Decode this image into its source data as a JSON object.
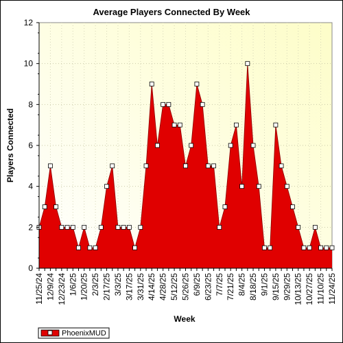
{
  "chart_data": {
    "type": "area",
    "title": "Average Players Connected By Week",
    "xlabel": "Week",
    "ylabel": "Players Connected",
    "ylim": [
      0,
      12
    ],
    "yticks": [
      0,
      2,
      4,
      6,
      8,
      10,
      12
    ],
    "grid": true,
    "legend_position": "bottom-left",
    "x": [
      "11/25/24",
      "12/2/24",
      "12/9/24",
      "12/16/24",
      "12/23/24",
      "12/30/24",
      "1/6/25",
      "1/13/25",
      "1/20/25",
      "1/27/25",
      "2/3/25",
      "2/10/25",
      "2/17/25",
      "2/24/25",
      "3/3/25",
      "3/10/25",
      "3/17/25",
      "3/24/25",
      "3/31/25",
      "4/7/25",
      "4/14/25",
      "4/21/25",
      "4/28/25",
      "5/5/25",
      "5/12/25",
      "5/19/25",
      "5/26/25",
      "6/2/25",
      "6/9/25",
      "6/16/25",
      "6/23/25",
      "6/30/25",
      "7/7/25",
      "7/14/25",
      "7/21/25",
      "7/28/25",
      "8/4/25",
      "8/11/25",
      "8/18/25",
      "8/25/25",
      "9/1/25",
      "9/8/25",
      "9/15/25",
      "9/22/25",
      "9/29/25",
      "10/6/25",
      "10/13/25",
      "10/20/25",
      "10/27/25",
      "11/3/25",
      "11/10/25",
      "11/17/25",
      "11/24/25"
    ],
    "xtick_labels": [
      "11/25/24",
      "12/9/24",
      "12/23/24",
      "1/6/25",
      "1/20/25",
      "2/3/25",
      "2/17/25",
      "3/3/25",
      "3/17/25",
      "3/31/25",
      "4/14/25",
      "4/28/25",
      "5/12/25",
      "5/26/25",
      "6/9/25",
      "6/23/25",
      "7/7/25",
      "7/21/25",
      "8/4/25",
      "8/18/25",
      "9/1/25",
      "9/15/25",
      "9/29/25",
      "10/13/25",
      "10/27/25",
      "11/10/25",
      "11/24/25"
    ],
    "series": [
      {
        "name": "PhoenixMUD",
        "color": "#e00000",
        "values": [
          2,
          3,
          5,
          3,
          2,
          2,
          2,
          1,
          2,
          1,
          1,
          2,
          4,
          5,
          2,
          2,
          2,
          1,
          2,
          5,
          9,
          6,
          8,
          8,
          7,
          7,
          5,
          6,
          9,
          8,
          5,
          5,
          2,
          3,
          6,
          7,
          4,
          10,
          6,
          4,
          1,
          1,
          7,
          5,
          4,
          3,
          2,
          1,
          1,
          2,
          1,
          1,
          1
        ]
      }
    ]
  }
}
